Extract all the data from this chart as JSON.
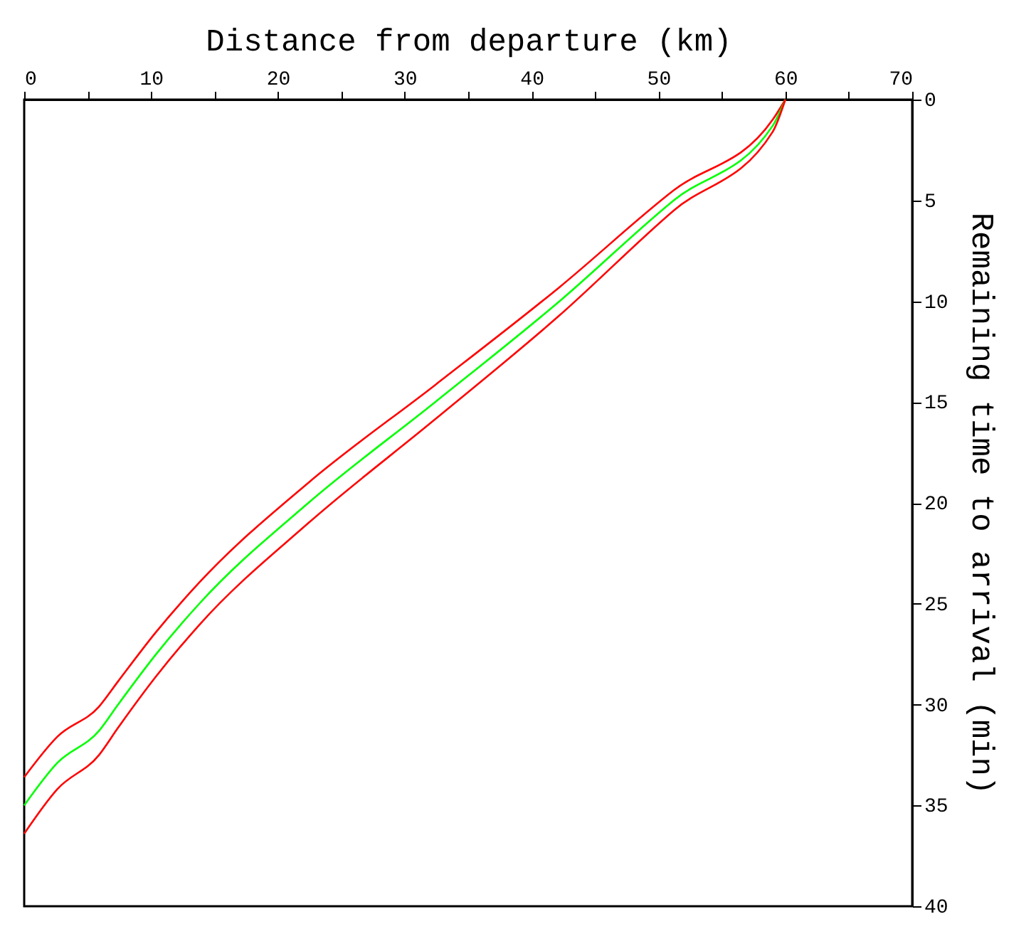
{
  "chart_data": {
    "type": "line",
    "xlabel": "Distance from departure (km)",
    "ylabel": "Remaining time to arrival (min)",
    "x": [
      60,
      59,
      51.2,
      42.2,
      32.4,
      22.4,
      13.8,
      10.4,
      7.4,
      5.9,
      2.6,
      0
    ],
    "series": [
      {
        "color": "#ff0000",
        "values": [
          0,
          1.0,
          4.5,
          9.3,
          14.15,
          19.0,
          23.95,
          26.4,
          28.85,
          30.1,
          31.6,
          33.6
        ]
      },
      {
        "color": "#00ff00",
        "values": [
          0,
          1.3,
          5,
          10,
          15,
          20,
          25,
          27.5,
          30,
          31.3,
          32.9,
          35.0
        ]
      },
      {
        "color": "#ff0000",
        "values": [
          0,
          1.6,
          5.5,
          10.7,
          15.85,
          21.0,
          26.05,
          28.6,
          31.15,
          32.5,
          34.2,
          36.4
        ]
      }
    ],
    "xlim": [
      0,
      70
    ],
    "xticks": [
      0,
      {
        "value": 5,
        "label": null
      },
      10,
      {
        "value": 15,
        "label": null
      },
      20,
      {
        "value": 25,
        "label": null
      },
      30,
      {
        "value": 35,
        "label": null
      },
      40,
      {
        "value": 45,
        "label": null
      },
      50,
      {
        "value": 55,
        "label": null
      },
      60,
      {
        "value": 65,
        "label": null
      },
      70
    ],
    "ylim": [
      40,
      0
    ],
    "yticks": [
      0,
      5,
      10,
      15,
      20,
      25,
      30,
      35,
      40
    ],
    "grid": false,
    "marker": "none",
    "line_style": "solid"
  }
}
